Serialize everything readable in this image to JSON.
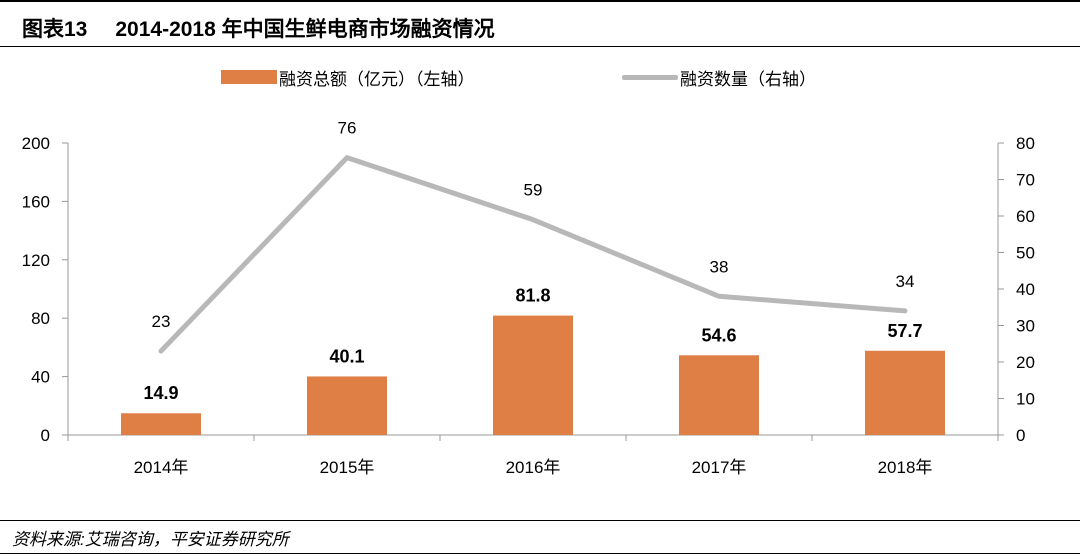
{
  "figure": {
    "number": "图表13",
    "title": "2014-2018 年中国生鲜电商市场融资情况"
  },
  "source": "资料来源:艾瑞咨询，平安证券研究所",
  "chart_data": {
    "type": "bar",
    "categories": [
      "2014年",
      "2015年",
      "2016年",
      "2017年",
      "2018年"
    ],
    "series": [
      {
        "name": "融资总额（亿元）（左轴）",
        "type": "bar",
        "axis": "left",
        "color": "#e07f45",
        "values": [
          14.9,
          40.1,
          81.8,
          54.6,
          57.7
        ],
        "labels": [
          "14.9",
          "40.1",
          "81.8",
          "54.6",
          "57.7"
        ]
      },
      {
        "name": "融资数量（右轴）",
        "type": "line",
        "axis": "right",
        "color": "#b8b8b8",
        "values": [
          23,
          76,
          59,
          38,
          34
        ],
        "labels": [
          "23",
          "76",
          "59",
          "38",
          "34"
        ]
      }
    ],
    "y_left": {
      "range": [
        0,
        200
      ],
      "ticks": [
        "0",
        "40",
        "80",
        "120",
        "160",
        "200"
      ]
    },
    "y_right": {
      "range": [
        0,
        80
      ],
      "ticks": [
        "0",
        "10",
        "20",
        "30",
        "40",
        "50",
        "60",
        "70",
        "80"
      ]
    },
    "grid": false,
    "legend_position": "top"
  }
}
